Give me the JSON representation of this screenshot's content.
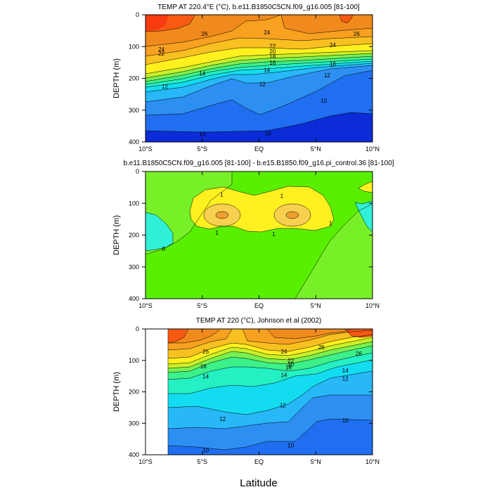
{
  "figure": {
    "xlabel": "Latitude"
  },
  "chart_data": [
    {
      "type": "contour",
      "title": "TEMP AT 220.4°E (°C), b.e11.B1850C5CN.f09_g16.005 [81-100]",
      "xlabel": "Latitude",
      "ylabel": "DEPTH (m)",
      "xlim": [
        -10,
        10
      ],
      "ylim": [
        400,
        0
      ],
      "x_ticks": [
        "10°S",
        "5°S",
        "EQ",
        "5°N",
        "10°N"
      ],
      "y_ticks": [
        "0",
        "100",
        "200",
        "300",
        "400"
      ],
      "contour_labels": [
        {
          "text": "26",
          "x": -4.8,
          "y": 60
        },
        {
          "text": "24",
          "x": 0.7,
          "y": 55
        },
        {
          "text": "26",
          "x": 8.6,
          "y": 60
        },
        {
          "text": "24",
          "x": 6.5,
          "y": 95
        },
        {
          "text": "22",
          "x": 1.2,
          "y": 98
        },
        {
          "text": "24",
          "x": -8.6,
          "y": 108
        },
        {
          "text": "22",
          "x": -8.6,
          "y": 122
        },
        {
          "text": "20",
          "x": 1.2,
          "y": 115
        },
        {
          "text": "18",
          "x": 1.2,
          "y": 130
        },
        {
          "text": "16",
          "x": 1.2,
          "y": 150
        },
        {
          "text": "14",
          "x": -5.0,
          "y": 185
        },
        {
          "text": "14",
          "x": 0.7,
          "y": 173
        },
        {
          "text": "12",
          "x": -8.3,
          "y": 225
        },
        {
          "text": "12",
          "x": 0.3,
          "y": 218
        },
        {
          "text": "12",
          "x": 6.0,
          "y": 190
        },
        {
          "text": "10",
          "x": 5.7,
          "y": 270
        },
        {
          "text": "10",
          "x": -5.0,
          "y": 375
        },
        {
          "text": "10",
          "x": 0.8,
          "y": 372
        },
        {
          "text": "16",
          "x": 6.5,
          "y": 155
        }
      ],
      "color_scale": [
        "#0b2cd6",
        "#1f6ff0",
        "#2d8ff2",
        "#28b8f8",
        "#14dcf0",
        "#24f0c4",
        "#3cf08a",
        "#78f050",
        "#c8f028",
        "#fff01e",
        "#f8c020",
        "#f8a020",
        "#f08a1c",
        "#f85a14",
        "#f82a0c"
      ]
    },
    {
      "type": "contour",
      "title": "b.e11.B1850C5CN.f09_g16.005 [81-100] - b.e15.B1850.f09_g16.pi_control.36 [81-100]",
      "xlabel": "Latitude",
      "ylabel": "DEPTH (m)",
      "xlim": [
        -10,
        10
      ],
      "ylim": [
        400,
        0
      ],
      "x_ticks": [
        "10°S",
        "5°S",
        "EQ",
        "5°N",
        "10°N"
      ],
      "y_ticks": [
        "0",
        "100",
        "200",
        "300",
        "400"
      ],
      "contour_labels": [
        {
          "text": "1",
          "x": -3.3,
          "y": 72
        },
        {
          "text": "1",
          "x": 2.0,
          "y": 76
        },
        {
          "text": "1",
          "x": -3.7,
          "y": 192
        },
        {
          "text": "1",
          "x": 1.3,
          "y": 197
        },
        {
          "text": "1",
          "x": 6.3,
          "y": 162
        },
        {
          "text": "0",
          "x": -8.4,
          "y": 243
        }
      ],
      "color_scale": [
        "#30f0d8",
        "#58f000",
        "#78f028",
        "#fff020",
        "#f8d050",
        "#f0a030"
      ]
    },
    {
      "type": "contour",
      "title": "TEMP AT 220 (°C), Johnson et al (2002)",
      "xlabel": "Latitude",
      "ylabel": "DEPTH (m)",
      "xlim": [
        -10,
        10
      ],
      "ylim": [
        400,
        0
      ],
      "x_ticks": [
        "10°S",
        "5°S",
        "EQ",
        "5°N",
        "10°N"
      ],
      "y_ticks": [
        "0",
        "100",
        "200",
        "300",
        "400"
      ],
      "contour_labels": [
        {
          "text": "26",
          "x": -4.7,
          "y": 72
        },
        {
          "text": "24",
          "x": 2.2,
          "y": 72
        },
        {
          "text": "26",
          "x": 5.5,
          "y": 58
        },
        {
          "text": "22",
          "x": 2.8,
          "y": 100
        },
        {
          "text": "20",
          "x": 2.8,
          "y": 113
        },
        {
          "text": "18",
          "x": 2.6,
          "y": 122
        },
        {
          "text": "14",
          "x": -4.7,
          "y": 151
        },
        {
          "text": "14",
          "x": 2.2,
          "y": 146
        },
        {
          "text": "14",
          "x": 7.6,
          "y": 132
        },
        {
          "text": "12",
          "x": -3.2,
          "y": 286
        },
        {
          "text": "12",
          "x": 2.1,
          "y": 242
        },
        {
          "text": "12",
          "x": 7.6,
          "y": 158
        },
        {
          "text": "10",
          "x": 7.6,
          "y": 290
        },
        {
          "text": "10",
          "x": -4.7,
          "y": 385
        },
        {
          "text": "10",
          "x": 2.8,
          "y": 370
        },
        {
          "text": "26",
          "x": 8.8,
          "y": 78
        },
        {
          "text": "16",
          "x": -4.9,
          "y": 118
        }
      ],
      "color_scale": [
        "#0b2cd6",
        "#1f6ff0",
        "#2d8ff2",
        "#28b8f8",
        "#14dcf0",
        "#24f0c4",
        "#3cf08a",
        "#78f050",
        "#c8f028",
        "#fff01e",
        "#f8c020",
        "#f8a020",
        "#f08a1c",
        "#f85a14",
        "#f82a0c"
      ]
    }
  ]
}
